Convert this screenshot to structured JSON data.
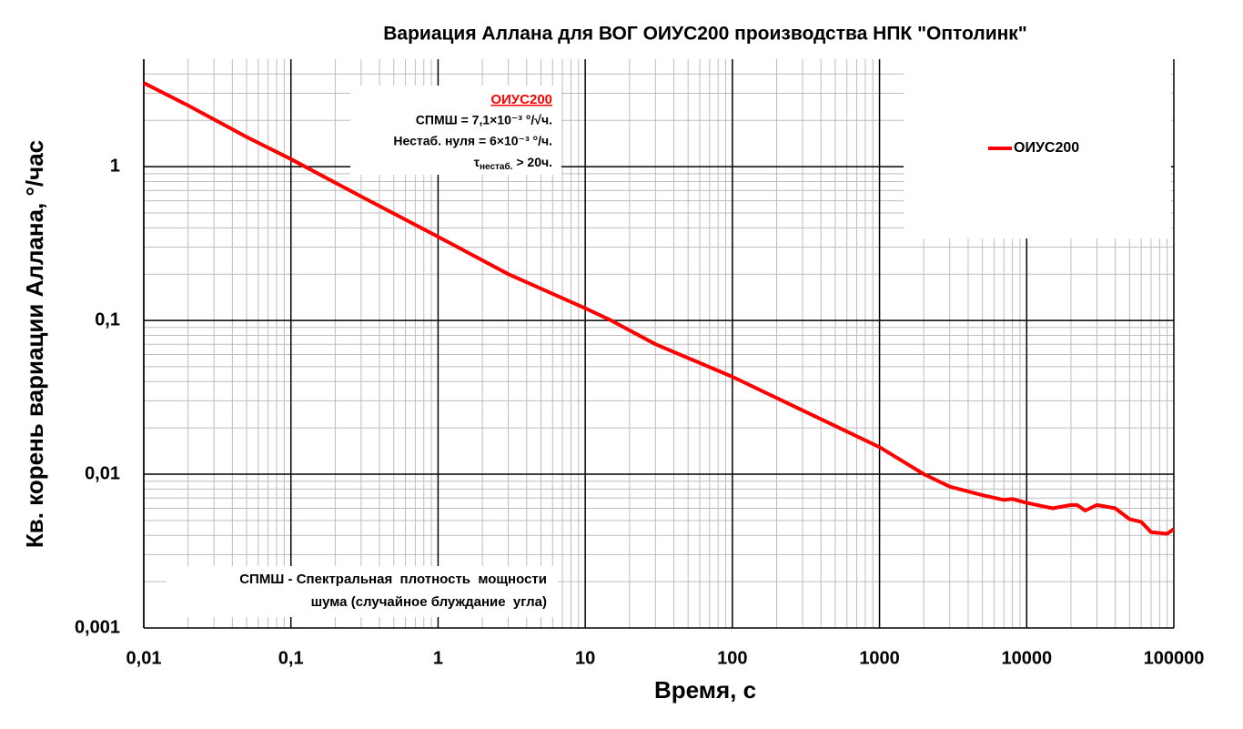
{
  "chart_data": {
    "type": "line",
    "title": "Вариация Аллана для ВОГ ОИУС200 производства НПК \"Оптолинк\"",
    "x_label": "Время, с",
    "y_label": "Кв. корень вариации Аллана, °/час",
    "log_x": true,
    "log_y": true,
    "grid": true,
    "minor_grid": true,
    "legend": "upper right",
    "xlim": [
      0.01,
      100000
    ],
    "ylim": [
      0.001,
      5
    ],
    "xticks": [
      {
        "value": 0.01,
        "label": "0,01"
      },
      {
        "value": 0.1,
        "label": "0,1"
      },
      1,
      10,
      100,
      1000,
      10000,
      100000
    ],
    "yticks": [
      {
        "value": 0.001,
        "label": "0,001"
      },
      {
        "value": 0.01,
        "label": "0,01"
      },
      {
        "value": 0.1,
        "label": "0,1"
      },
      1
    ],
    "x": [
      0.01,
      0.02,
      0.05,
      0.1,
      0.3,
      1,
      3,
      10,
      15,
      30,
      100,
      300,
      1000,
      2000,
      3000,
      5000,
      7000,
      8000,
      10000,
      15000,
      20000,
      22000,
      25000,
      30000,
      40000,
      50000,
      60000,
      70000,
      90000,
      100000
    ],
    "series": [
      {
        "name": "ОИУС200",
        "color": "#ff0000",
        "values": [
          3.5,
          2.5,
          1.56,
          1.12,
          0.64,
          0.35,
          0.2,
          0.12,
          0.1,
          0.07,
          0.043,
          0.026,
          0.015,
          0.01,
          0.0083,
          0.0073,
          0.0068,
          0.0069,
          0.0065,
          0.006,
          0.0063,
          0.0063,
          0.0058,
          0.0063,
          0.006,
          0.0051,
          0.0049,
          0.0042,
          0.0041,
          0.0044
        ]
      }
    ],
    "annotations": {
      "spec_title": "ОИУС200",
      "lines": [
        "СПМШ = 7,1×10⁻³ °/√ч.",
        "Нестаб. нуля = 6×10⁻³ °/ч."
      ],
      "tau": {
        "symbol": "τ",
        "subscript": "нестаб.",
        "text": " > 20ч."
      },
      "note": [
        "СПМШ - Спектральная  плотность  мощности",
        "шума (случайное блуждание  угла)"
      ]
    }
  }
}
